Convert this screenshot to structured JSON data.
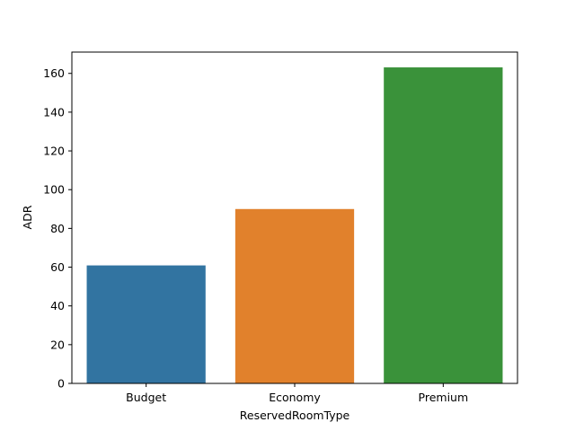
{
  "chart_data": {
    "type": "bar",
    "title": "",
    "xlabel": "ReservedRoomType",
    "ylabel": "ADR",
    "categories": [
      "Budget",
      "Economy",
      "Premium"
    ],
    "values": [
      60.9,
      90.0,
      163.1
    ],
    "colors": [
      "#3274a1",
      "#e1812c",
      "#3a923a"
    ],
    "ylim": [
      0,
      171
    ],
    "yticks": [
      0,
      20,
      40,
      60,
      80,
      100,
      120,
      140,
      160
    ],
    "grid": false,
    "legend": "none"
  }
}
